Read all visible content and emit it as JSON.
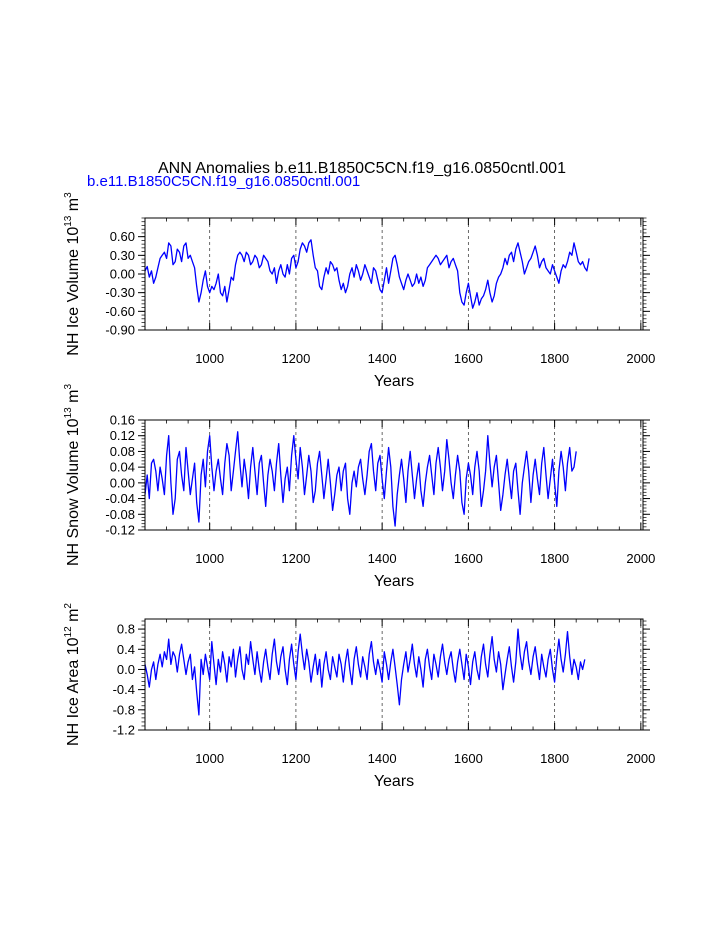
{
  "figure": {
    "title": "ANN Anomalies b.e11.B1850C5CN.f19_g16.0850cntl.001",
    "legend_label": "b.e11.B1850C5CN.f19_g16.0850cntl.001",
    "line_color": "#0000ff",
    "grid_color": "#444444"
  },
  "chart_data": [
    {
      "type": "line",
      "id": "ice-volume",
      "ylabel_main": "NH Ice Volume 10",
      "ylabel_exp": "13",
      "ylabel_unit": " m",
      "ylabel_unit_exp": "3",
      "xlabel": "Years",
      "xlim": [
        850,
        2005
      ],
      "ylim": [
        -0.9,
        0.9
      ],
      "xticks": [
        1000,
        1200,
        1400,
        1600,
        1800,
        2000
      ],
      "xtick_labels": [
        "1000",
        "1200",
        "1400",
        "1600",
        "1800",
        "2000"
      ],
      "yticks": [
        -0.9,
        -0.6,
        -0.3,
        0.0,
        0.3,
        0.6
      ],
      "ytick_labels": [
        "-0.90",
        "-0.60",
        "-0.30",
        "0.00",
        "0.30",
        "0.60"
      ],
      "grid_x": [
        1000,
        1200,
        1400,
        1600,
        1800,
        2000
      ],
      "series": [
        {
          "name": "b.e11.B1850C5CN.f19_g16.0850cntl.001",
          "x_start": 850,
          "x_step": 5,
          "values": [
            0.05,
            0.12,
            -0.05,
            0.05,
            -0.15,
            -0.05,
            0.1,
            0.25,
            0.3,
            0.35,
            0.25,
            0.5,
            0.45,
            0.15,
            0.2,
            0.4,
            0.35,
            0.2,
            0.45,
            0.5,
            0.25,
            0.3,
            0.2,
            0.1,
            -0.2,
            -0.45,
            -0.3,
            -0.1,
            0.05,
            -0.2,
            -0.3,
            -0.2,
            -0.25,
            -0.15,
            0.0,
            -0.3,
            -0.35,
            -0.2,
            -0.45,
            -0.25,
            -0.05,
            -0.1,
            0.15,
            0.3,
            0.35,
            0.3,
            0.2,
            0.35,
            0.3,
            0.15,
            0.2,
            0.3,
            0.25,
            0.1,
            0.15,
            0.3,
            0.25,
            0.2,
            0.05,
            0.0,
            0.1,
            -0.15,
            0.05,
            0.15,
            0.0,
            -0.05,
            0.15,
            0.0,
            0.25,
            0.3,
            0.1,
            0.2,
            0.4,
            0.5,
            0.45,
            0.35,
            0.5,
            0.55,
            0.3,
            0.1,
            0.05,
            -0.2,
            -0.25,
            -0.05,
            0.1,
            0.0,
            0.2,
            0.15,
            0.05,
            0.1,
            -0.1,
            -0.25,
            -0.15,
            -0.3,
            -0.2,
            0.0,
            0.1,
            -0.05,
            0.15,
            0.05,
            -0.1,
            0.0,
            0.15,
            0.05,
            -0.05,
            -0.15,
            0.1,
            0.05,
            -0.1,
            -0.25,
            -0.3,
            -0.1,
            0.1,
            -0.15,
            0.05,
            0.25,
            0.3,
            0.15,
            -0.05,
            -0.15,
            -0.25,
            -0.1,
            0.0,
            -0.1,
            -0.2,
            -0.15,
            0.0,
            -0.15,
            -0.05,
            -0.2,
            -0.1,
            0.1,
            0.15,
            0.2,
            0.25,
            0.3,
            0.25,
            0.15,
            0.2,
            0.25,
            0.3,
            0.1,
            0.2,
            0.25,
            0.15,
            0.05,
            -0.3,
            -0.45,
            -0.5,
            -0.3,
            -0.15,
            -0.35,
            -0.55,
            -0.45,
            -0.3,
            -0.5,
            -0.4,
            -0.35,
            -0.25,
            -0.1,
            -0.3,
            -0.45,
            -0.35,
            -0.15,
            -0.05,
            0.0,
            0.1,
            0.25,
            0.15,
            0.3,
            0.35,
            0.2,
            0.4,
            0.5,
            0.35,
            0.2,
            0.0,
            0.1,
            0.2,
            0.25,
            0.35,
            0.45,
            0.3,
            0.1,
            0.2,
            0.25,
            0.1,
            0.05,
            0.0,
            0.15,
            0.05,
            -0.05,
            -0.15,
            0.05,
            0.15,
            0.1,
            0.2,
            0.35,
            0.3,
            0.5,
            0.35,
            0.2,
            0.15,
            0.2,
            0.1,
            0.05,
            0.25
          ]
        }
      ]
    },
    {
      "type": "line",
      "id": "snow-volume",
      "ylabel_main": "NH Snow Volume 10",
      "ylabel_exp": "13",
      "ylabel_unit": " m",
      "ylabel_unit_exp": "3",
      "xlabel": "Years",
      "xlim": [
        850,
        2005
      ],
      "ylim": [
        -0.12,
        0.16
      ],
      "xticks": [
        1000,
        1200,
        1400,
        1600,
        1800,
        2000
      ],
      "xtick_labels": [
        "1000",
        "1200",
        "1400",
        "1600",
        "1800",
        "2000"
      ],
      "yticks": [
        -0.12,
        -0.08,
        -0.04,
        0.0,
        0.04,
        0.08,
        0.12,
        0.16
      ],
      "ytick_labels": [
        "-0.12",
        "-0.08",
        "-0.04",
        "0.00",
        "0.04",
        "0.08",
        "0.12",
        "0.16"
      ],
      "grid_x": [
        1000,
        1200,
        1400,
        1600,
        1800,
        2000
      ],
      "series": [
        {
          "name": "b.e11.B1850C5CN.f19_g16.0850cntl.001",
          "x_start": 850,
          "x_step": 5,
          "values": [
            -0.03,
            0.02,
            -0.04,
            0.05,
            0.06,
            0.03,
            -0.02,
            0.04,
            0.01,
            -0.03,
            0.07,
            0.12,
            0.0,
            -0.08,
            -0.04,
            0.06,
            0.08,
            0.02,
            -0.02,
            0.09,
            0.03,
            -0.03,
            0.01,
            0.05,
            -0.05,
            -0.1,
            0.02,
            0.06,
            -0.01,
            0.08,
            0.12,
            0.04,
            -0.02,
            0.03,
            0.06,
            0.01,
            -0.03,
            0.05,
            0.1,
            0.07,
            -0.02,
            0.03,
            0.08,
            0.13,
            0.05,
            -0.01,
            0.06,
            0.02,
            -0.04,
            0.04,
            0.09,
            0.03,
            -0.03,
            0.05,
            0.07,
            0.0,
            -0.06,
            0.02,
            0.06,
            0.03,
            -0.02,
            0.05,
            0.1,
            0.02,
            -0.05,
            0.01,
            0.04,
            -0.02,
            0.07,
            0.12,
            0.06,
            0.01,
            0.09,
            0.04,
            -0.03,
            0.02,
            0.07,
            0.03,
            -0.05,
            -0.02,
            0.05,
            0.08,
            0.02,
            -0.04,
            0.01,
            0.06,
            0.0,
            -0.07,
            -0.03,
            0.02,
            0.04,
            -0.02,
            0.03,
            0.05,
            -0.04,
            -0.08,
            0.0,
            0.03,
            -0.01,
            0.04,
            0.06,
            0.01,
            -0.03,
            0.02,
            0.08,
            0.1,
            0.03,
            -0.02,
            0.05,
            0.07,
            0.01,
            -0.04,
            0.03,
            0.09,
            0.04,
            -0.06,
            -0.11,
            -0.03,
            0.02,
            0.06,
            0.01,
            -0.05,
            0.03,
            0.08,
            0.02,
            -0.04,
            0.01,
            0.05,
            -0.02,
            -0.06,
            0.0,
            0.04,
            0.07,
            0.02,
            -0.03,
            0.05,
            0.09,
            0.04,
            -0.02,
            0.03,
            0.11,
            0.06,
            0.0,
            -0.04,
            0.02,
            0.07,
            0.03,
            -0.05,
            -0.08,
            0.01,
            0.05,
            0.02,
            -0.03,
            0.04,
            0.08,
            0.03,
            -0.06,
            -0.02,
            0.03,
            0.12,
            0.05,
            -0.01,
            0.04,
            0.07,
            0.0,
            -0.07,
            -0.03,
            0.02,
            0.06,
            0.01,
            -0.04,
            0.03,
            0.05,
            -0.02,
            -0.08,
            0.0,
            0.04,
            0.08,
            0.03,
            -0.05,
            0.02,
            0.06,
            0.01,
            -0.03,
            0.05,
            0.09,
            0.02,
            -0.04,
            0.01,
            0.06,
            0.0,
            -0.06,
            0.03,
            0.08,
            0.04,
            -0.02,
            0.05,
            0.09,
            0.03,
            0.04,
            0.08
          ]
        }
      ]
    },
    {
      "type": "line",
      "id": "ice-area",
      "ylabel_main": "NH Ice Area 10",
      "ylabel_exp": "12",
      "ylabel_unit": " m",
      "ylabel_unit_exp": "2",
      "xlabel": "Years",
      "xlim": [
        850,
        2005
      ],
      "ylim": [
        -1.2,
        1.0
      ],
      "xticks": [
        1000,
        1200,
        1400,
        1600,
        1800,
        2000
      ],
      "xtick_labels": [
        "1000",
        "1200",
        "1400",
        "1600",
        "1800",
        "2000"
      ],
      "yticks": [
        -1.2,
        -0.8,
        -0.4,
        0.0,
        0.4,
        0.8
      ],
      "ytick_labels": [
        "-1.2",
        "-0.8",
        "-0.4",
        "0.0",
        "0.4",
        "0.8"
      ],
      "grid_x": [
        1000,
        1200,
        1400,
        1600,
        1800,
        2000
      ],
      "series": [
        {
          "name": "b.e11.B1850C5CN.f19_g16.0850cntl.001",
          "x_start": 850,
          "x_step": 5,
          "values": [
            0.1,
            -0.1,
            -0.35,
            0.0,
            0.15,
            -0.2,
            0.1,
            0.3,
            0.05,
            0.35,
            0.2,
            0.6,
            0.1,
            0.35,
            0.25,
            -0.05,
            0.3,
            0.5,
            0.2,
            -0.1,
            0.15,
            0.3,
            -0.2,
            0.05,
            -0.45,
            -0.9,
            0.2,
            -0.1,
            0.3,
            0.05,
            -0.2,
            0.55,
            0.1,
            -0.3,
            0.2,
            -0.05,
            0.35,
            0.1,
            -0.25,
            0.25,
            0.05,
            0.4,
            -0.15,
            0.2,
            0.45,
            0.0,
            -0.2,
            0.3,
            0.1,
            0.55,
            0.2,
            -0.1,
            0.35,
            0.0,
            -0.25,
            0.15,
            0.4,
            0.05,
            -0.2,
            0.3,
            0.6,
            0.15,
            -0.1,
            0.25,
            0.45,
            0.0,
            -0.3,
            0.2,
            0.5,
            0.1,
            -0.2,
            0.35,
            0.7,
            0.3,
            0.0,
            0.4,
            0.15,
            -0.25,
            0.05,
            0.3,
            -0.1,
            0.2,
            -0.35,
            0.1,
            0.35,
            0.0,
            -0.2,
            0.25,
            0.05,
            -0.15,
            0.3,
            0.1,
            -0.25,
            0.15,
            0.4,
            0.0,
            -0.3,
            0.2,
            0.45,
            0.1,
            -0.15,
            0.25,
            0.05,
            -0.2,
            0.3,
            0.55,
            0.15,
            -0.1,
            0.2,
            0.0,
            -0.25,
            0.35,
            0.1,
            -0.2,
            0.15,
            0.4,
            0.05,
            -0.3,
            -0.7,
            -0.2,
            0.1,
            0.35,
            -0.05,
            0.2,
            0.5,
            0.1,
            -0.15,
            0.25,
            0.0,
            -0.35,
            0.2,
            0.4,
            0.05,
            -0.2,
            0.3,
            0.1,
            -0.15,
            0.25,
            0.5,
            0.15,
            -0.1,
            0.2,
            0.35,
            0.0,
            -0.25,
            0.15,
            0.4,
            0.1,
            -0.2,
            0.3,
            0.05,
            -0.3,
            0.15,
            0.35,
            0.0,
            -0.2,
            0.25,
            0.5,
            0.1,
            -0.15,
            0.3,
            0.65,
            0.2,
            -0.05,
            0.35,
            0.1,
            -0.4,
            -0.1,
            0.2,
            0.45,
            0.05,
            -0.25,
            0.15,
            0.8,
            0.3,
            0.0,
            0.35,
            0.55,
            0.15,
            -0.1,
            0.25,
            0.45,
            0.1,
            -0.2,
            0.3,
            0.05,
            -0.15,
            0.2,
            0.4,
            0.0,
            -0.25,
            0.25,
            0.6,
            0.2,
            -0.05,
            0.3,
            0.75,
            0.25,
            -0.1,
            0.2,
            0.05,
            -0.2,
            0.15,
            0.0,
            0.2
          ]
        }
      ]
    }
  ]
}
